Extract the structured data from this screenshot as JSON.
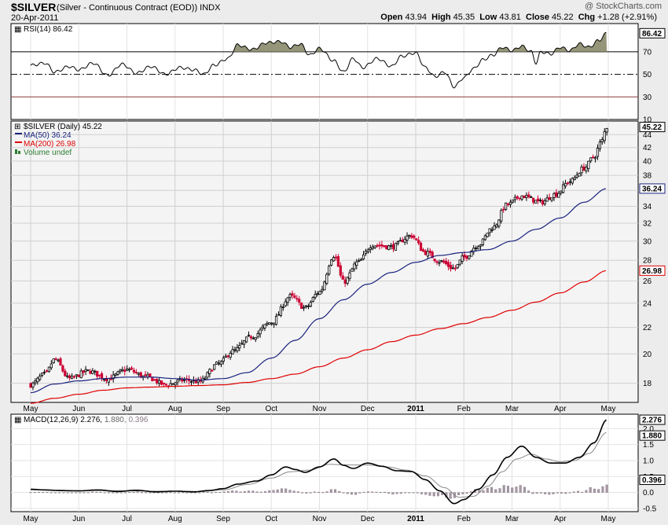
{
  "header": {
    "symbol": "$SILVER",
    "description": "(Silver - Continuous Contract (EOD))",
    "exchange": "INDX",
    "date": "20-Apr-2011",
    "watermark": "@ StockCharts.com",
    "open_label": "Open",
    "open": "43.94",
    "high_label": "High",
    "high": "45.35",
    "low_label": "Low",
    "low": "43.81",
    "close_label": "Close",
    "close": "45.22",
    "chg_label": "Chg",
    "chg": "+1.28 (+2.91%)"
  },
  "legend": {
    "rsi": "RSI(14) 86.42",
    "price": "$SILVER (Daily) 45.22",
    "ma50": "MA(50) 36.24",
    "ma200": "MA(200) 26.98",
    "volume": "Volume undef",
    "macd_a": "MACD(12,26,9) 2.276,",
    "macd_b": "1.880,",
    "macd_c": "0.396"
  },
  "colors": {
    "up": "#000000",
    "down": "#cc0033",
    "ma50": "#1a237e",
    "ma200": "#e00000",
    "rsi_fill": "#8a8a6a",
    "macd_hist": "#a99aa7"
  },
  "chart_data": {
    "type": "candlestick",
    "period": "Daily",
    "x_tick_labels": [
      "May",
      "Jun",
      "Jul",
      "Aug",
      "Sep",
      "Oct",
      "Nov",
      "Dec",
      "2011",
      "Feb",
      "Mar",
      "Apr",
      "May"
    ],
    "price_axis": {
      "ylim": [
        16.8,
        46.2
      ],
      "ticks": [
        18,
        20,
        22,
        24,
        26,
        28,
        30,
        32,
        34,
        36,
        38,
        40,
        42,
        44
      ],
      "scale": "log"
    },
    "rsi_axis": {
      "ylim": [
        10,
        95
      ],
      "ticks": [
        10,
        30,
        50,
        70
      ],
      "guides": [
        30,
        50,
        70
      ]
    },
    "macd_axis": {
      "ylim": [
        -0.6,
        2.45
      ],
      "ticks": [
        -0.5,
        0.0,
        0.5,
        1.0,
        1.5,
        2.0
      ]
    },
    "tags": {
      "close": "45.22",
      "ma50": "36.24",
      "ma200": "26.98",
      "rsi": "86.42",
      "macd": "2.276",
      "signal": "1.880",
      "hist": "0.396"
    },
    "close_anchors": [
      {
        "m": 0.0,
        "v": 17.9
      },
      {
        "m": 0.3,
        "v": 18.6
      },
      {
        "m": 0.5,
        "v": 19.6
      },
      {
        "m": 0.8,
        "v": 18.3
      },
      {
        "m": 1.2,
        "v": 18.8
      },
      {
        "m": 1.6,
        "v": 18.3
      },
      {
        "m": 2.0,
        "v": 18.9
      },
      {
        "m": 2.4,
        "v": 18.4
      },
      {
        "m": 2.8,
        "v": 17.9
      },
      {
        "m": 3.2,
        "v": 18.2
      },
      {
        "m": 3.5,
        "v": 18.1
      },
      {
        "m": 3.9,
        "v": 19.3
      },
      {
        "m": 4.2,
        "v": 20.2
      },
      {
        "m": 4.6,
        "v": 21.3
      },
      {
        "m": 5.0,
        "v": 22.4
      },
      {
        "m": 5.4,
        "v": 24.6
      },
      {
        "m": 5.7,
        "v": 23.6
      },
      {
        "m": 6.0,
        "v": 25.0
      },
      {
        "m": 6.3,
        "v": 28.5
      },
      {
        "m": 6.5,
        "v": 25.9
      },
      {
        "m": 6.8,
        "v": 27.8
      },
      {
        "m": 7.1,
        "v": 29.6
      },
      {
        "m": 7.5,
        "v": 29.4
      },
      {
        "m": 7.9,
        "v": 30.6
      },
      {
        "m": 8.2,
        "v": 28.8
      },
      {
        "m": 8.5,
        "v": 27.9
      },
      {
        "m": 8.8,
        "v": 27.2
      },
      {
        "m": 9.0,
        "v": 28.3
      },
      {
        "m": 9.3,
        "v": 29.6
      },
      {
        "m": 9.6,
        "v": 31.5
      },
      {
        "m": 9.9,
        "v": 34.2
      },
      {
        "m": 10.2,
        "v": 35.3
      },
      {
        "m": 10.6,
        "v": 34.5
      },
      {
        "m": 10.9,
        "v": 35.5
      },
      {
        "m": 11.2,
        "v": 37.2
      },
      {
        "m": 11.5,
        "v": 39.0
      },
      {
        "m": 11.7,
        "v": 40.6
      },
      {
        "m": 11.85,
        "v": 42.8
      },
      {
        "m": 11.97,
        "v": 45.22
      }
    ],
    "ma50_anchors": [
      {
        "m": 0.0,
        "v": 17.4
      },
      {
        "m": 0.5,
        "v": 17.95
      },
      {
        "m": 1.0,
        "v": 18.15
      },
      {
        "m": 1.5,
        "v": 18.3
      },
      {
        "m": 2.0,
        "v": 18.4
      },
      {
        "m": 2.5,
        "v": 18.4
      },
      {
        "m": 3.0,
        "v": 18.3
      },
      {
        "m": 3.5,
        "v": 18.2
      },
      {
        "m": 4.0,
        "v": 18.3
      },
      {
        "m": 4.5,
        "v": 18.7
      },
      {
        "m": 5.0,
        "v": 19.7
      },
      {
        "m": 5.5,
        "v": 21.0
      },
      {
        "m": 6.0,
        "v": 22.7
      },
      {
        "m": 6.5,
        "v": 24.3
      },
      {
        "m": 7.0,
        "v": 25.7
      },
      {
        "m": 7.5,
        "v": 26.8
      },
      {
        "m": 8.0,
        "v": 27.8
      },
      {
        "m": 8.5,
        "v": 28.5
      },
      {
        "m": 9.0,
        "v": 28.8
      },
      {
        "m": 9.5,
        "v": 29.1
      },
      {
        "m": 10.0,
        "v": 30.0
      },
      {
        "m": 10.5,
        "v": 31.3
      },
      {
        "m": 11.0,
        "v": 32.6
      },
      {
        "m": 11.5,
        "v": 34.5
      },
      {
        "m": 11.97,
        "v": 36.24
      }
    ],
    "ma200_anchors": [
      {
        "m": 0.0,
        "v": 16.75
      },
      {
        "m": 0.5,
        "v": 17.05
      },
      {
        "m": 1.0,
        "v": 17.3
      },
      {
        "m": 1.5,
        "v": 17.55
      },
      {
        "m": 2.0,
        "v": 17.7
      },
      {
        "m": 2.5,
        "v": 17.75
      },
      {
        "m": 3.0,
        "v": 17.8
      },
      {
        "m": 3.5,
        "v": 17.85
      },
      {
        "m": 4.0,
        "v": 17.9
      },
      {
        "m": 4.5,
        "v": 18.05
      },
      {
        "m": 5.0,
        "v": 18.3
      },
      {
        "m": 5.5,
        "v": 18.6
      },
      {
        "m": 6.0,
        "v": 19.1
      },
      {
        "m": 6.5,
        "v": 19.7
      },
      {
        "m": 7.0,
        "v": 20.3
      },
      {
        "m": 7.5,
        "v": 20.9
      },
      {
        "m": 8.0,
        "v": 21.4
      },
      {
        "m": 8.5,
        "v": 21.9
      },
      {
        "m": 9.0,
        "v": 22.3
      },
      {
        "m": 9.5,
        "v": 22.8
      },
      {
        "m": 10.0,
        "v": 23.4
      },
      {
        "m": 10.5,
        "v": 24.1
      },
      {
        "m": 11.0,
        "v": 24.9
      },
      {
        "m": 11.5,
        "v": 25.9
      },
      {
        "m": 11.97,
        "v": 26.98
      }
    ],
    "rsi_anchors": [
      {
        "m": 0.0,
        "v": 58
      },
      {
        "m": 0.3,
        "v": 60
      },
      {
        "m": 0.5,
        "v": 52
      },
      {
        "m": 0.8,
        "v": 57
      },
      {
        "m": 1.0,
        "v": 54
      },
      {
        "m": 1.3,
        "v": 60
      },
      {
        "m": 1.6,
        "v": 49
      },
      {
        "m": 1.9,
        "v": 59
      },
      {
        "m": 2.2,
        "v": 51
      },
      {
        "m": 2.5,
        "v": 57
      },
      {
        "m": 2.8,
        "v": 50
      },
      {
        "m": 3.1,
        "v": 56
      },
      {
        "m": 3.4,
        "v": 54
      },
      {
        "m": 3.6,
        "v": 50
      },
      {
        "m": 3.8,
        "v": 58
      },
      {
        "m": 4.1,
        "v": 64
      },
      {
        "m": 4.3,
        "v": 76
      },
      {
        "m": 4.6,
        "v": 72
      },
      {
        "m": 4.9,
        "v": 78
      },
      {
        "m": 5.2,
        "v": 79
      },
      {
        "m": 5.4,
        "v": 74
      },
      {
        "m": 5.6,
        "v": 77
      },
      {
        "m": 5.8,
        "v": 67
      },
      {
        "m": 6.0,
        "v": 73
      },
      {
        "m": 6.3,
        "v": 62
      },
      {
        "m": 6.5,
        "v": 52
      },
      {
        "m": 6.7,
        "v": 64
      },
      {
        "m": 6.9,
        "v": 56
      },
      {
        "m": 7.2,
        "v": 64
      },
      {
        "m": 7.5,
        "v": 57
      },
      {
        "m": 7.7,
        "v": 66
      },
      {
        "m": 8.0,
        "v": 69
      },
      {
        "m": 8.2,
        "v": 56
      },
      {
        "m": 8.4,
        "v": 48
      },
      {
        "m": 8.6,
        "v": 52
      },
      {
        "m": 8.8,
        "v": 39
      },
      {
        "m": 9.0,
        "v": 47
      },
      {
        "m": 9.2,
        "v": 55
      },
      {
        "m": 9.4,
        "v": 63
      },
      {
        "m": 9.6,
        "v": 67
      },
      {
        "m": 9.8,
        "v": 74
      },
      {
        "m": 10.0,
        "v": 71
      },
      {
        "m": 10.2,
        "v": 75
      },
      {
        "m": 10.4,
        "v": 70
      },
      {
        "m": 10.5,
        "v": 60
      },
      {
        "m": 10.6,
        "v": 70
      },
      {
        "m": 10.8,
        "v": 68
      },
      {
        "m": 11.0,
        "v": 74
      },
      {
        "m": 11.2,
        "v": 71
      },
      {
        "m": 11.4,
        "v": 77
      },
      {
        "m": 11.6,
        "v": 74
      },
      {
        "m": 11.8,
        "v": 80
      },
      {
        "m": 11.97,
        "v": 86.42
      }
    ],
    "macd_anchors": [
      {
        "m": 0.0,
        "v": 0.1
      },
      {
        "m": 0.3,
        "v": 0.08
      },
      {
        "m": 0.6,
        "v": 0.06
      },
      {
        "m": 1.0,
        "v": 0.05
      },
      {
        "m": 1.4,
        "v": 0.08
      },
      {
        "m": 1.8,
        "v": 0.03
      },
      {
        "m": 2.2,
        "v": 0.07
      },
      {
        "m": 2.6,
        "v": 0.02
      },
      {
        "m": 3.0,
        "v": 0.04
      },
      {
        "m": 3.4,
        "v": 0.02
      },
      {
        "m": 3.7,
        "v": 0.06
      },
      {
        "m": 4.0,
        "v": 0.12
      },
      {
        "m": 4.3,
        "v": 0.26
      },
      {
        "m": 4.7,
        "v": 0.36
      },
      {
        "m": 5.0,
        "v": 0.55
      },
      {
        "m": 5.3,
        "v": 0.8
      },
      {
        "m": 5.5,
        "v": 0.72
      },
      {
        "m": 5.7,
        "v": 0.63
      },
      {
        "m": 6.0,
        "v": 0.8
      },
      {
        "m": 6.3,
        "v": 1.05
      },
      {
        "m": 6.5,
        "v": 0.85
      },
      {
        "m": 6.7,
        "v": 0.75
      },
      {
        "m": 7.0,
        "v": 0.92
      },
      {
        "m": 7.3,
        "v": 0.82
      },
      {
        "m": 7.6,
        "v": 0.68
      },
      {
        "m": 7.9,
        "v": 0.66
      },
      {
        "m": 8.2,
        "v": 0.4
      },
      {
        "m": 8.5,
        "v": 0.05
      },
      {
        "m": 8.8,
        "v": -0.35
      },
      {
        "m": 9.0,
        "v": -0.22
      },
      {
        "m": 9.3,
        "v": 0.1
      },
      {
        "m": 9.6,
        "v": 0.55
      },
      {
        "m": 9.9,
        "v": 1.1
      },
      {
        "m": 10.2,
        "v": 1.45
      },
      {
        "m": 10.5,
        "v": 1.1
      },
      {
        "m": 10.8,
        "v": 0.92
      },
      {
        "m": 11.1,
        "v": 0.92
      },
      {
        "m": 11.4,
        "v": 1.1
      },
      {
        "m": 11.7,
        "v": 1.55
      },
      {
        "m": 11.97,
        "v": 2.276
      }
    ],
    "signal_anchors": [
      {
        "m": 0.0,
        "v": 0.08
      },
      {
        "m": 0.5,
        "v": 0.07
      },
      {
        "m": 1.0,
        "v": 0.06
      },
      {
        "m": 1.5,
        "v": 0.06
      },
      {
        "m": 2.0,
        "v": 0.05
      },
      {
        "m": 2.5,
        "v": 0.04
      },
      {
        "m": 3.0,
        "v": 0.04
      },
      {
        "m": 3.5,
        "v": 0.03
      },
      {
        "m": 4.0,
        "v": 0.08
      },
      {
        "m": 4.5,
        "v": 0.25
      },
      {
        "m": 5.0,
        "v": 0.45
      },
      {
        "m": 5.4,
        "v": 0.65
      },
      {
        "m": 5.8,
        "v": 0.7
      },
      {
        "m": 6.2,
        "v": 0.88
      },
      {
        "m": 6.6,
        "v": 0.86
      },
      {
        "m": 7.0,
        "v": 0.86
      },
      {
        "m": 7.4,
        "v": 0.8
      },
      {
        "m": 7.8,
        "v": 0.7
      },
      {
        "m": 8.2,
        "v": 0.52
      },
      {
        "m": 8.6,
        "v": 0.15
      },
      {
        "m": 8.9,
        "v": -0.15
      },
      {
        "m": 9.2,
        "v": -0.12
      },
      {
        "m": 9.5,
        "v": 0.2
      },
      {
        "m": 9.8,
        "v": 0.65
      },
      {
        "m": 10.1,
        "v": 1.05
      },
      {
        "m": 10.4,
        "v": 1.2
      },
      {
        "m": 10.7,
        "v": 1.05
      },
      {
        "m": 11.0,
        "v": 0.96
      },
      {
        "m": 11.3,
        "v": 1.0
      },
      {
        "m": 11.6,
        "v": 1.22
      },
      {
        "m": 11.97,
        "v": 1.88
      }
    ]
  }
}
